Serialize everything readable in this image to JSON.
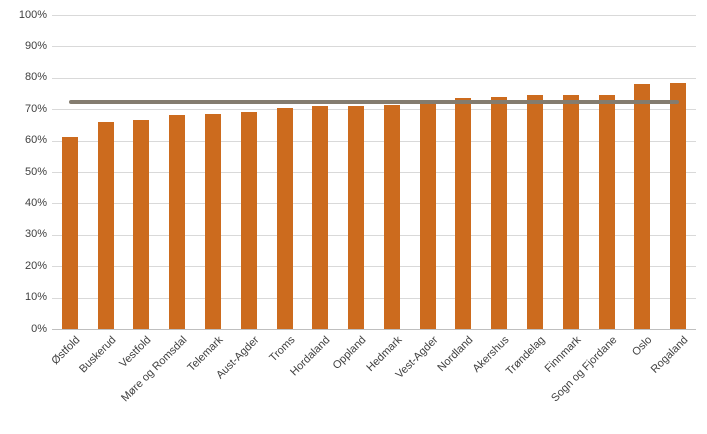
{
  "chart_data": {
    "type": "bar",
    "title": "",
    "xlabel": "",
    "ylabel": "",
    "categories": [
      "Østfold",
      "Buskerud",
      "Vestfold",
      "Møre og Romsdal",
      "Telemark",
      "Aust-Agder",
      "Troms",
      "Hordaland",
      "Oppland",
      "Hedmark",
      "Vest-Agder",
      "Nordland",
      "Akershus",
      "Trøndelag",
      "Finnmark",
      "Sogn og Fjordane",
      "Oslo",
      "Rogaland"
    ],
    "values": [
      61,
      66,
      66.5,
      68,
      68.5,
      69,
      70.5,
      71,
      71,
      71.5,
      73,
      73.5,
      74,
      74.5,
      74.5,
      74.5,
      78,
      78.5
    ],
    "yticks": [
      "0%",
      "10%",
      "20%",
      "30%",
      "40%",
      "50%",
      "60%",
      "70%",
      "80%",
      "90%",
      "100%"
    ],
    "ytick_values": [
      0,
      10,
      20,
      30,
      40,
      50,
      60,
      70,
      80,
      90,
      100
    ],
    "ylim": [
      0,
      100
    ],
    "grid": true,
    "legend": "none",
    "reference_line": {
      "value": 72.3,
      "color": "#847c6f"
    },
    "bar_color": "#cc6b1e",
    "gridline_color": "#d9d9d9",
    "axis_line_color": "#bfbfbf",
    "tick_label_color": "#404040"
  }
}
